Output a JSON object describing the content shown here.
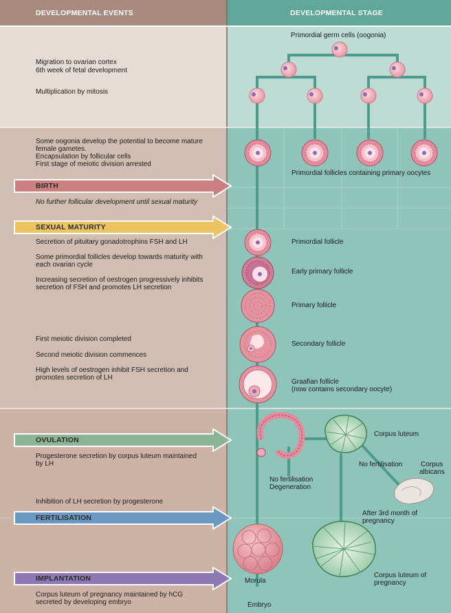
{
  "headers": {
    "left": "DEVELOPMENTAL EVENTS",
    "right": "DEVELOPMENTAL STAGE"
  },
  "events": {
    "migration": "Migration to ovarian cortex",
    "sixth_week": "6th week of fetal development",
    "mitosis": "Multiplication by mitosis",
    "potential_1": "Some oogonia develop the potential to become mature",
    "potential_2": "female gametes.",
    "encapsulation": "Encapsulation by follicular cells",
    "arrested": "First stage of meiotic division arrested",
    "no_further": "No further follicular development until sexual maturity",
    "secretion_fsh": "Secretion of pituitary gonadotrophins FSH and LH",
    "some_primordial_1": "Some primordial follicles develop towards maturity with",
    "some_primordial_2": "each ovarian cycle",
    "increasing_1": "Increasing secretion of oestrogen progressively inhibits",
    "increasing_2": "secretion of FSH and promotes LH secretion",
    "first_meiotic": "First meiotic division completed",
    "second_meiotic": "Second meiotic division commences",
    "high_levels_1": "High levels of oestrogen inhibit FSH secretion and",
    "high_levels_2": "promotes secretion of LH",
    "progesterone_1": "Progesterone secretion by corpus luteum maintained",
    "progesterone_2": "by LH",
    "inhibition": "Inhibition of LH secretion by progesterone",
    "hcg_1": "Corpus luteum of pregnancy maintained by hCG",
    "hcg_2": "secreted by developing embryo"
  },
  "milestones": {
    "birth": "BIRTH",
    "sexual_maturity": "SEXUAL MATURITY",
    "ovulation": "OVULATION",
    "fertilisation": "FERTILISATION",
    "implantation": "IMPLANTATION"
  },
  "stages": {
    "germ_cells": "Primordial germ cells (oogonia)",
    "primordial_follicles": "Primordial follicles containing primary oocytes",
    "primordial_follicle": "Primordial follicle",
    "early_primary": "Early primary follicle",
    "primary": "Primary follicle",
    "secondary": "Secondary follicle",
    "graafian_1": "Graafian follicle",
    "graafian_2": "(now contains secondary oocyte)",
    "corpus_luteum": "Corpus luteum",
    "no_fert_1": "No fertilisation",
    "degeneration": "Degeneration",
    "no_fert_2": "No fertilisation",
    "albicans_1": "Corpus",
    "albicans_2": "albicans",
    "after_3rd_1": "After 3rd month of",
    "after_3rd_2": "pregnancy",
    "cl_preg_1": "Corpus luteum of",
    "cl_preg_2": "pregnancy",
    "morula": "Morula",
    "embryo": "Embryo"
  },
  "colors": {
    "left_bg": "#cdb3a6",
    "left_top_bg": "#e6dcd6",
    "right_bg": "#8fc4b8",
    "right_top_bg": "#bcdcd4",
    "header_left": "#a88b7e",
    "header_right": "#5ea799",
    "path": "#4e9b8c",
    "birth": "#cc7f7f",
    "sexual_maturity": "#ecc462",
    "ovulation": "#8cb595",
    "fertilisation": "#6b98c3",
    "implantation": "#8e79b4",
    "cell": "#eaa0ad"
  }
}
